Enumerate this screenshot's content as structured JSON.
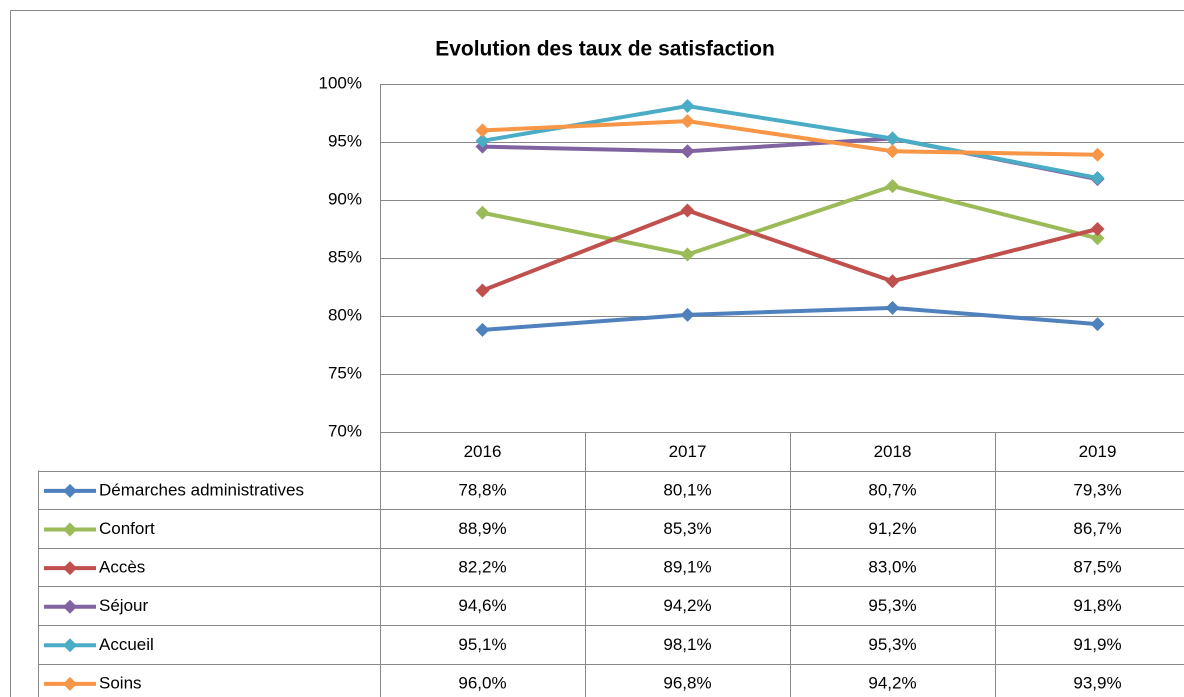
{
  "chart_data": {
    "type": "line",
    "title": "Evolution des taux de satisfaction",
    "categories": [
      "2016",
      "2017",
      "2018",
      "2019"
    ],
    "series": [
      {
        "name": "Démarches administratives",
        "color": "#4f81bd",
        "values": [
          78.8,
          80.1,
          80.7,
          79.3
        ],
        "value_labels": [
          "78,8%",
          "80,1%",
          "80,7%",
          "79,3%"
        ]
      },
      {
        "name": "Confort",
        "color": "#9bbb59",
        "values": [
          88.9,
          85.3,
          91.2,
          86.7
        ],
        "value_labels": [
          "88,9%",
          "85,3%",
          "91,2%",
          "86,7%"
        ]
      },
      {
        "name": "Accès",
        "color": "#c0504d",
        "values": [
          82.2,
          89.1,
          83.0,
          87.5
        ],
        "value_labels": [
          "82,2%",
          "89,1%",
          "83,0%",
          "87,5%"
        ]
      },
      {
        "name": "Séjour",
        "color": "#8064a2",
        "values": [
          94.6,
          94.2,
          95.3,
          91.8
        ],
        "value_labels": [
          "94,6%",
          "94,2%",
          "95,3%",
          "91,8%"
        ]
      },
      {
        "name": "Accueil",
        "color": "#4bacc6",
        "values": [
          95.1,
          98.1,
          95.3,
          91.9
        ],
        "value_labels": [
          "95,1%",
          "98,1%",
          "95,3%",
          "91,9%"
        ]
      },
      {
        "name": "Soins",
        "color": "#f79646",
        "values": [
          96.0,
          96.8,
          94.2,
          93.9
        ],
        "value_labels": [
          "96,0%",
          "96,8%",
          "94,2%",
          "93,9%"
        ]
      }
    ],
    "ylim": [
      70,
      100
    ],
    "yticks": [
      {
        "value": 70,
        "label": "70%"
      },
      {
        "value": 75,
        "label": "75%"
      },
      {
        "value": 80,
        "label": "80%"
      },
      {
        "value": 85,
        "label": "85%"
      },
      {
        "value": 90,
        "label": "90%"
      },
      {
        "value": 95,
        "label": "95%"
      },
      {
        "value": 100,
        "label": "100%"
      }
    ],
    "grid": true
  }
}
